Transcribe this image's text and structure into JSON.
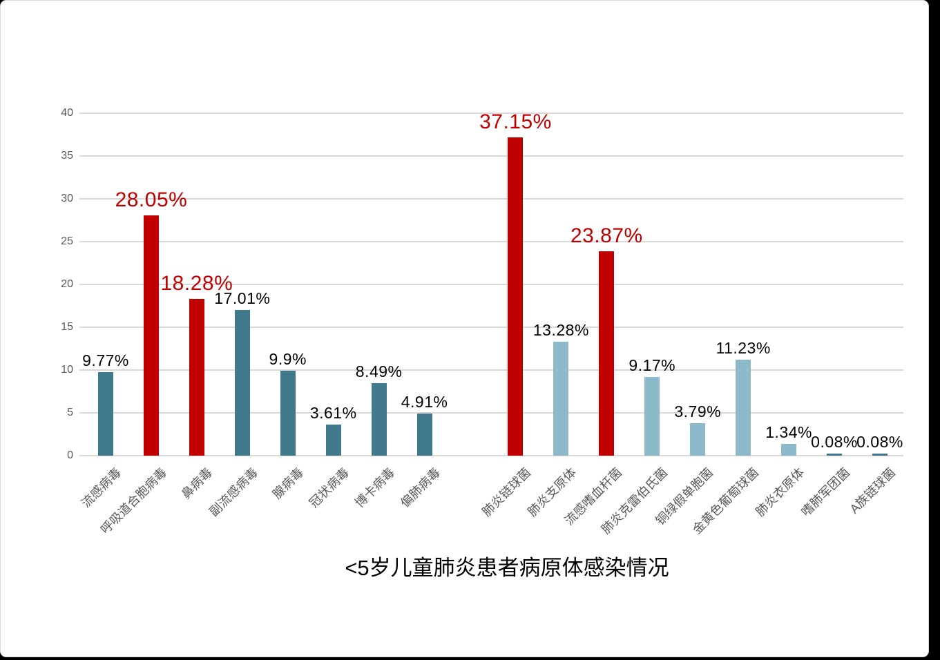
{
  "page": {
    "background": "#000000",
    "canvas_background": "#ffffff",
    "canvas_border": "#d9d9d9"
  },
  "chart_data": {
    "type": "bar",
    "title": "<5岁儿童肺炎患者病原体感染情况",
    "xlabel": "",
    "ylabel": "",
    "ylim": [
      0,
      40
    ],
    "yticks": [
      0,
      5,
      10,
      15,
      20,
      25,
      30,
      35,
      40
    ],
    "grid": true,
    "legend_position": "none",
    "title_position": "bottom-center",
    "value_unit": "%",
    "colors": {
      "teal": "#41798C",
      "light_blue": "#8CBACA",
      "red": "#C00000",
      "gridline": "#D9D9D9",
      "axis_text": "#595959",
      "value_label_black": "#000000",
      "value_label_red": "#C00000"
    },
    "group_gap_slot": 8,
    "bars": [
      {
        "category": "流感病毒",
        "value": 9.77,
        "label": "9.77%",
        "color": "teal",
        "emphasis": false,
        "slot": 0
      },
      {
        "category": "呼吸道合胞病毒",
        "value": 28.05,
        "label": "28.05%",
        "color": "red",
        "emphasis": true,
        "slot": 1
      },
      {
        "category": "鼻病毒",
        "value": 18.28,
        "label": "18.28%",
        "color": "red",
        "emphasis": true,
        "slot": 2
      },
      {
        "category": "副流感病毒",
        "value": 17.01,
        "label": "17.01%",
        "color": "teal",
        "emphasis": false,
        "slot": 3
      },
      {
        "category": "腺病毒",
        "value": 9.9,
        "label": "9.9%",
        "color": "teal",
        "emphasis": false,
        "slot": 4
      },
      {
        "category": "冠状病毒",
        "value": 3.61,
        "label": "3.61%",
        "color": "teal",
        "emphasis": false,
        "slot": 5
      },
      {
        "category": "博卡病毒",
        "value": 8.49,
        "label": "8.49%",
        "color": "teal",
        "emphasis": false,
        "slot": 6
      },
      {
        "category": "偏肺病毒",
        "value": 4.91,
        "label": "4.91%",
        "color": "teal",
        "emphasis": false,
        "slot": 7
      },
      {
        "category": "肺炎链球菌",
        "value": 37.15,
        "label": "37.15%",
        "color": "red",
        "emphasis": true,
        "slot": 9
      },
      {
        "category": "肺炎支原体",
        "value": 13.28,
        "label": "13.28%",
        "color": "light_blue",
        "emphasis": false,
        "slot": 10
      },
      {
        "category": "流感嗜血杆菌",
        "value": 23.87,
        "label": "23.87%",
        "color": "red",
        "emphasis": true,
        "slot": 11
      },
      {
        "category": "肺炎克雷伯氏菌",
        "value": 9.17,
        "label": "9.17%",
        "color": "light_blue",
        "emphasis": false,
        "slot": 12
      },
      {
        "category": "铜绿假单胞菌",
        "value": 3.79,
        "label": "3.79%",
        "color": "light_blue",
        "emphasis": false,
        "slot": 13
      },
      {
        "category": "金黄色葡萄球菌",
        "value": 11.23,
        "label": "11.23%",
        "color": "light_blue",
        "emphasis": false,
        "slot": 14
      },
      {
        "category": "肺炎衣原体",
        "value": 1.34,
        "label": "1.34%",
        "color": "light_blue",
        "emphasis": false,
        "slot": 15
      },
      {
        "category": "嗜肺军团菌",
        "value": 0.08,
        "label": "0.08%",
        "color": "teal",
        "emphasis": false,
        "slot": 16
      },
      {
        "category": "A族链球菌",
        "value": 0.08,
        "label": "0.08%",
        "color": "teal",
        "emphasis": false,
        "slot": 17
      }
    ]
  }
}
